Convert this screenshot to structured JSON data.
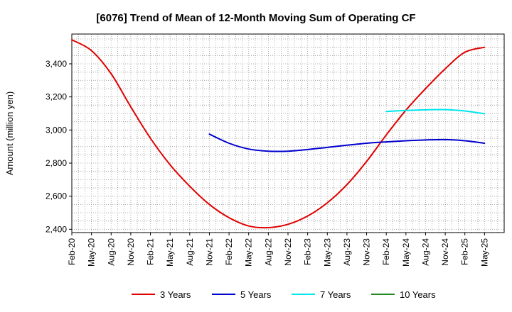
{
  "chart_data": {
    "type": "line",
    "title": "[6076]  Trend of Mean of 12-Month Moving Sum of Operating CF",
    "xlabel": "",
    "ylabel": "Amount (million yen)",
    "ylim": [
      2380,
      3580
    ],
    "yticks": [
      2400,
      2600,
      2800,
      3000,
      3200,
      3400
    ],
    "ytick_labels": [
      "2,400",
      "2,600",
      "2,800",
      "3,000",
      "3,200",
      "3,400"
    ],
    "x_categories": [
      "Feb-20",
      "May-20",
      "Aug-20",
      "Nov-20",
      "Feb-21",
      "May-21",
      "Aug-21",
      "Nov-21",
      "Feb-22",
      "May-22",
      "Aug-22",
      "Nov-22",
      "Feb-23",
      "May-23",
      "Aug-23",
      "Nov-23",
      "Feb-24",
      "May-24",
      "Aug-24",
      "Nov-24",
      "Feb-25",
      "May-25"
    ],
    "grid": true,
    "legend_position": "bottom",
    "series": [
      {
        "name": "3 Years",
        "color": "#e00000",
        "x": [
          0,
          3,
          6,
          9,
          12,
          15,
          18,
          21,
          24,
          27,
          30,
          33,
          36,
          39,
          42,
          45,
          48,
          51,
          54,
          57,
          60,
          63
        ],
        "values": [
          3545,
          3480,
          3340,
          3140,
          2950,
          2790,
          2660,
          2550,
          2470,
          2420,
          2410,
          2430,
          2480,
          2560,
          2670,
          2810,
          2970,
          3120,
          3250,
          3370,
          3470,
          3500
        ]
      },
      {
        "name": "5 Years",
        "color": "#0000cc",
        "x": [
          21,
          24,
          27,
          30,
          33,
          36,
          39,
          42,
          45,
          48,
          51,
          54,
          57,
          60,
          63
        ],
        "values": [
          2975,
          2920,
          2885,
          2872,
          2872,
          2882,
          2895,
          2908,
          2920,
          2928,
          2935,
          2940,
          2942,
          2935,
          2920
        ]
      },
      {
        "name": "7 Years",
        "color": "#00e5ee",
        "x": [
          48,
          51,
          54,
          57,
          60,
          63
        ],
        "values": [
          3112,
          3118,
          3122,
          3123,
          3115,
          3098
        ]
      },
      {
        "name": "10 Years",
        "color": "#228b22",
        "x": [],
        "values": []
      }
    ]
  }
}
